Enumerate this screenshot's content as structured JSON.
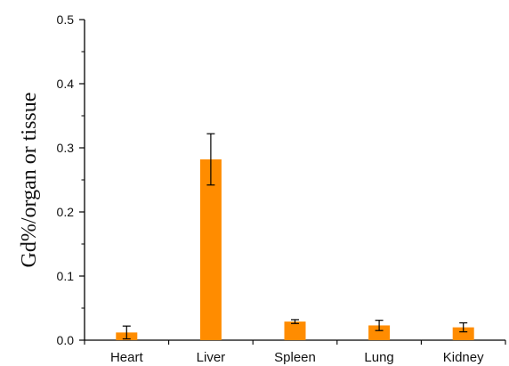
{
  "chart_data": {
    "type": "bar",
    "title": "",
    "xlabel": "",
    "ylabel": "Gd%/organ or tissue",
    "ylim": [
      0,
      0.5
    ],
    "yticks": [
      "0.0",
      "0.1",
      "0.2",
      "0.3",
      "0.4",
      "0.5"
    ],
    "categories": [
      "Heart",
      "Liver",
      "Spleen",
      "Lung",
      "Kidney"
    ],
    "values": [
      0.012,
      0.282,
      0.029,
      0.023,
      0.02
    ],
    "errors": [
      0.01,
      0.04,
      0.003,
      0.008,
      0.007
    ],
    "bar_color": "#FF8C00",
    "error_color": "#000000",
    "grid": false,
    "legend": "none"
  }
}
